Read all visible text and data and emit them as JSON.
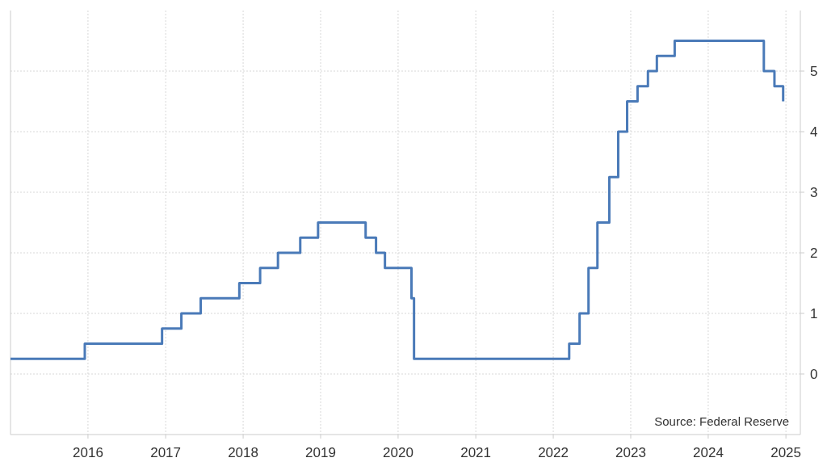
{
  "chart_data": {
    "type": "step",
    "x": [
      "2015-01-01",
      "2015-12-17",
      "2016-12-15",
      "2017-03-16",
      "2017-06-15",
      "2017-12-14",
      "2018-03-22",
      "2018-06-14",
      "2018-09-27",
      "2018-12-20",
      "2019-08-01",
      "2019-09-19",
      "2019-10-31",
      "2020-03-04",
      "2020-03-16",
      "2022-03-17",
      "2022-05-05",
      "2022-06-16",
      "2022-07-28",
      "2022-09-22",
      "2022-11-03",
      "2022-12-15",
      "2023-02-02",
      "2023-03-23",
      "2023-05-04",
      "2023-07-27",
      "2024-09-19",
      "2024-11-08",
      "2024-12-19"
    ],
    "series": [
      {
        "color": "#4a7ab8",
        "values": [
          0.25,
          0.5,
          0.75,
          1,
          1.25,
          1.5,
          1.75,
          2,
          2.25,
          2.5,
          2.25,
          2,
          1.75,
          1.25,
          0.25,
          0.5,
          1,
          1.75,
          2.5,
          3.25,
          4,
          4.5,
          4.75,
          5,
          5.25,
          5.5,
          5,
          4.75,
          4.5
        ]
      }
    ],
    "xlim": [
      "2015-01-01",
      "2025-03-10"
    ],
    "xticks": [
      {
        "value": "2016-01-01",
        "label": "2016"
      },
      {
        "value": "2017-01-01",
        "label": "2017"
      },
      {
        "value": "2018-01-01",
        "label": "2018"
      },
      {
        "value": "2019-01-01",
        "label": "2019"
      },
      {
        "value": "2020-01-01",
        "label": "2020"
      },
      {
        "value": "2021-01-01",
        "label": "2021"
      },
      {
        "value": "2022-01-01",
        "label": "2022"
      },
      {
        "value": "2023-01-01",
        "label": "2023"
      },
      {
        "value": "2024-01-01",
        "label": "2024"
      },
      {
        "value": "2025-01-01",
        "label": "2025"
      }
    ],
    "ylim": [
      -1,
      6
    ],
    "yticks": [
      0,
      1,
      2,
      3,
      4,
      5
    ],
    "grid": true,
    "line_style": "solid",
    "annotations": [
      "Source: Federal Reserve"
    ]
  }
}
